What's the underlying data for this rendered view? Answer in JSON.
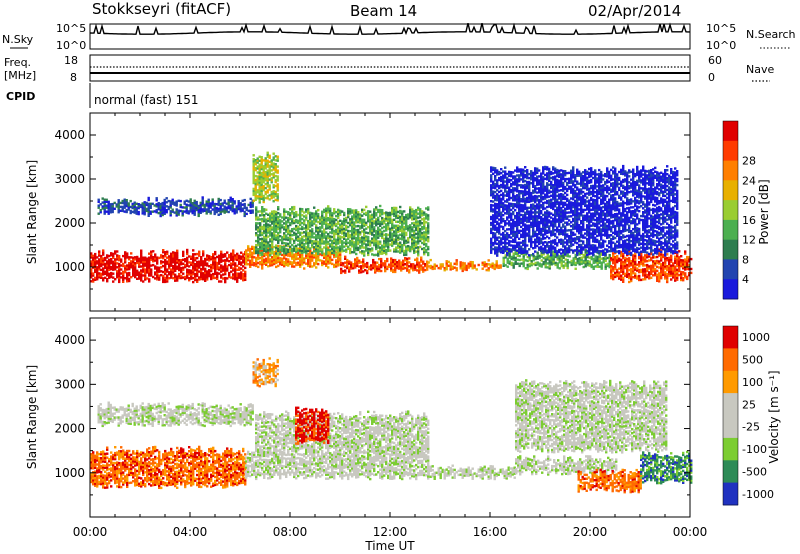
{
  "header": {
    "station": "Stokkseyri (fitACF)",
    "beam": "Beam 14",
    "date": "02/Apr/2014"
  },
  "top_panels": {
    "nsky_label": "N.Sky",
    "nsearch_label": "N.Search",
    "noise_ticks_left": [
      "10^5",
      "10^0"
    ],
    "noise_ticks_right": [
      "10^5",
      "10^0"
    ],
    "freq_label_1": "Freq.",
    "freq_label_2": "[MHz]",
    "freq_ticks": [
      "18",
      "8"
    ],
    "nave_label": "Nave",
    "nave_ticks": [
      "60",
      "0"
    ],
    "cpid_label": "CPID",
    "cpid_value": "normal (fast) 151"
  },
  "chart_data": [
    {
      "type": "heatmap",
      "title": "",
      "xlabel": "Time UT",
      "ylabel": "Slant Range [km]",
      "x_tick_labels": [
        "00:00",
        "04:00",
        "08:00",
        "12:00",
        "16:00",
        "20:00",
        "00:00"
      ],
      "xlim_hours": [
        0,
        24
      ],
      "y_tick_labels": [
        "1000",
        "2000",
        "3000",
        "4000"
      ],
      "ylim": [
        0,
        4500
      ],
      "colorbar_label": "Power [dB]",
      "colorbar_ticks": [
        "4",
        "8",
        "12",
        "16",
        "20",
        "24",
        "28"
      ],
      "colors": [
        "#1a1adc",
        "#2244b0",
        "#2e7d4f",
        "#4caf50",
        "#9acd32",
        "#e8b000",
        "#ff7f00",
        "#ff3b00",
        "#e00000"
      ],
      "echo_bands": [
        {
          "start_h": 0.0,
          "end_h": 6.2,
          "range_lo": 700,
          "range_hi": 1300,
          "level": 8
        },
        {
          "start_h": 6.2,
          "end_h": 10.0,
          "range_lo": 1000,
          "range_hi": 1400,
          "level": 6
        },
        {
          "start_h": 10.0,
          "end_h": 13.5,
          "range_lo": 900,
          "range_hi": 1150,
          "level": 7
        },
        {
          "start_h": 13.5,
          "end_h": 16.5,
          "range_lo": 950,
          "range_hi": 1100,
          "level": 6
        },
        {
          "start_h": 16.5,
          "end_h": 20.8,
          "range_lo": 1000,
          "range_hi": 1300,
          "level": 3
        },
        {
          "start_h": 20.8,
          "end_h": 24.0,
          "range_lo": 700,
          "range_hi": 1300,
          "level": 7
        },
        {
          "start_h": 6.6,
          "end_h": 13.5,
          "range_lo": 1300,
          "range_hi": 2300,
          "level": 3
        },
        {
          "start_h": 0.3,
          "end_h": 6.5,
          "range_lo": 2200,
          "range_hi": 2500,
          "level": 1
        },
        {
          "start_h": 16.0,
          "end_h": 23.5,
          "range_lo": 1300,
          "range_hi": 3200,
          "level": 0
        },
        {
          "start_h": 6.5,
          "end_h": 7.5,
          "range_lo": 2500,
          "range_hi": 3500,
          "level": 4
        }
      ]
    },
    {
      "type": "heatmap",
      "title": "",
      "xlabel": "Time UT",
      "ylabel": "Slant Range [km]",
      "x_tick_labels": [
        "00:00",
        "04:00",
        "08:00",
        "12:00",
        "16:00",
        "20:00",
        "00:00"
      ],
      "xlim_hours": [
        0,
        24
      ],
      "y_tick_labels": [
        "1000",
        "2000",
        "3000",
        "4000"
      ],
      "ylim": [
        0,
        4500
      ],
      "colorbar_label": "Velocity [m s⁻¹]",
      "colorbar_ticks": [
        "1000",
        "500",
        "100",
        "25",
        "-25",
        "-100",
        "-500",
        "-1000"
      ],
      "colors": [
        "#2032c0",
        "#2e8b57",
        "#7ccd32",
        "#c8c8c0",
        "#c8c8c0",
        "#ff9a00",
        "#ff6a00",
        "#e00000"
      ],
      "echo_bands": [
        {
          "start_h": 0.0,
          "end_h": 6.2,
          "range_lo": 700,
          "range_hi": 1500,
          "level": 6
        },
        {
          "start_h": 6.2,
          "end_h": 13.5,
          "range_lo": 900,
          "range_hi": 1500,
          "level": 3
        },
        {
          "start_h": 13.5,
          "end_h": 17.0,
          "range_lo": 900,
          "range_hi": 1100,
          "level": 3
        },
        {
          "start_h": 17.0,
          "end_h": 21.0,
          "range_lo": 1000,
          "range_hi": 1300,
          "level": 3
        },
        {
          "start_h": 19.5,
          "end_h": 22.0,
          "range_lo": 600,
          "range_hi": 1000,
          "level": 6
        },
        {
          "start_h": 22.0,
          "end_h": 24.0,
          "range_lo": 800,
          "range_hi": 1400,
          "level": 1
        },
        {
          "start_h": 0.3,
          "end_h": 6.5,
          "range_lo": 2100,
          "range_hi": 2500,
          "level": 3
        },
        {
          "start_h": 6.6,
          "end_h": 13.5,
          "range_lo": 1500,
          "range_hi": 2300,
          "level": 3
        },
        {
          "start_h": 8.2,
          "end_h": 9.5,
          "range_lo": 1700,
          "range_hi": 2400,
          "level": 7
        },
        {
          "start_h": 6.5,
          "end_h": 7.5,
          "range_lo": 3000,
          "range_hi": 3500,
          "level": 5
        },
        {
          "start_h": 17.0,
          "end_h": 23.0,
          "range_lo": 1500,
          "range_hi": 3000,
          "level": 3
        }
      ]
    }
  ]
}
